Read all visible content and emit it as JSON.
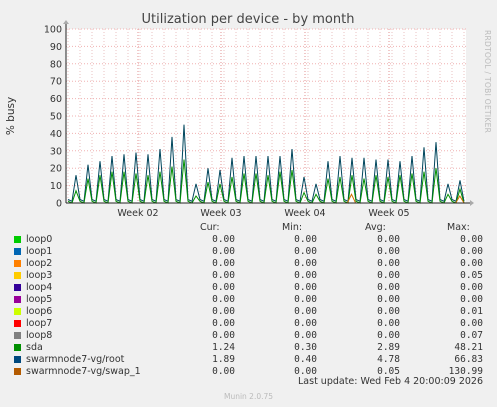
{
  "chart_data": {
    "type": "line",
    "title": "Utilization per device - by month",
    "ylabel": "% busy",
    "ylim": [
      0,
      100
    ],
    "yticks": [
      "0",
      "10",
      "20",
      "30",
      "40",
      "50",
      "60",
      "70",
      "80",
      "90",
      "100"
    ],
    "xticks": [
      "Week 02",
      "Week 03",
      "Week 04",
      "Week 05"
    ],
    "side_label": "RRDTOOL / TOBI OETIKER",
    "series": [
      {
        "name": "swarmnode7-vg/root",
        "color": "#00455c",
        "values": [
          2,
          1,
          16,
          2,
          1,
          22,
          2,
          1,
          24,
          2,
          1,
          27,
          2,
          1,
          28,
          2,
          1,
          29,
          2,
          1,
          28,
          2,
          1,
          31,
          2,
          1,
          38,
          2,
          1,
          45,
          2,
          1,
          11,
          2,
          1,
          20,
          2,
          1,
          19,
          2,
          1,
          26,
          2,
          1,
          27,
          2,
          1,
          27,
          2,
          1,
          27,
          2,
          1,
          27,
          2,
          1,
          31,
          2,
          1,
          15,
          2,
          1,
          11,
          2,
          1,
          24,
          2,
          1,
          27,
          2,
          1,
          26,
          2,
          1,
          26,
          2,
          1,
          25,
          2,
          1,
          25,
          2,
          1,
          24,
          2,
          1,
          27,
          2,
          1,
          32,
          2,
          1,
          35,
          2,
          1,
          11,
          2,
          1,
          13,
          1
        ]
      },
      {
        "name": "sda",
        "color": "#008f00",
        "values": [
          1,
          0,
          7,
          1,
          0,
          14,
          1,
          0,
          16,
          1,
          0,
          18,
          1,
          0,
          18,
          1,
          0,
          17,
          1,
          0,
          16,
          1,
          0,
          18,
          1,
          0,
          21,
          1,
          0,
          25,
          1,
          0,
          4,
          1,
          0,
          12,
          1,
          0,
          11,
          1,
          0,
          15,
          1,
          0,
          17,
          1,
          0,
          17,
          1,
          0,
          16,
          1,
          0,
          18,
          1,
          0,
          19,
          1,
          0,
          6,
          1,
          0,
          5,
          1,
          0,
          14,
          1,
          0,
          15,
          1,
          0,
          16,
          1,
          0,
          14,
          1,
          0,
          16,
          1,
          0,
          15,
          1,
          0,
          16,
          1,
          0,
          17,
          1,
          0,
          18,
          1,
          0,
          20,
          1,
          0,
          5,
          1,
          0,
          8,
          0
        ]
      },
      {
        "name": "swarmnode7-vg/swap_1",
        "color": "#d26f00",
        "values": [
          0,
          0,
          0,
          0,
          0,
          0,
          0,
          0,
          0,
          0,
          0,
          0,
          0,
          0,
          0,
          0,
          0,
          0,
          0,
          0,
          0,
          0,
          0,
          0,
          0,
          0,
          0,
          0,
          0,
          0,
          0,
          0,
          0,
          0,
          0,
          0,
          0,
          0,
          0,
          0,
          0,
          0,
          0,
          0,
          0,
          0,
          0,
          0,
          0,
          0,
          0,
          0,
          0,
          0,
          0,
          0,
          0,
          0,
          0,
          0,
          0,
          0,
          0,
          0,
          0,
          0,
          0,
          0,
          5,
          0,
          0,
          0,
          0,
          0,
          0,
          0,
          0,
          0,
          0,
          0,
          0,
          0,
          0,
          0,
          0,
          0,
          0,
          0,
          0,
          0,
          0,
          0,
          0,
          0,
          4,
          0
        ]
      }
    ],
    "legend": {
      "headers": [
        "Cur:",
        "Min:",
        "Avg:",
        "Max:"
      ],
      "rows": [
        {
          "name": "loop0",
          "color": "#00cc00",
          "cur": "0.00",
          "min": "0.00",
          "avg": "0.00",
          "max": "0.00"
        },
        {
          "name": "loop1",
          "color": "#0066b3",
          "cur": "0.00",
          "min": "0.00",
          "avg": "0.00",
          "max": "0.00"
        },
        {
          "name": "loop2",
          "color": "#ff8000",
          "cur": "0.00",
          "min": "0.00",
          "avg": "0.00",
          "max": "0.00"
        },
        {
          "name": "loop3",
          "color": "#ffcc00",
          "cur": "0.00",
          "min": "0.00",
          "avg": "0.00",
          "max": "0.05"
        },
        {
          "name": "loop4",
          "color": "#330099",
          "cur": "0.00",
          "min": "0.00",
          "avg": "0.00",
          "max": "0.00"
        },
        {
          "name": "loop5",
          "color": "#990099",
          "cur": "0.00",
          "min": "0.00",
          "avg": "0.00",
          "max": "0.00"
        },
        {
          "name": "loop6",
          "color": "#ccff00",
          "cur": "0.00",
          "min": "0.00",
          "avg": "0.00",
          "max": "0.01"
        },
        {
          "name": "loop7",
          "color": "#ff0000",
          "cur": "0.00",
          "min": "0.00",
          "avg": "0.00",
          "max": "0.00"
        },
        {
          "name": "loop8",
          "color": "#808080",
          "cur": "0.00",
          "min": "0.00",
          "avg": "0.00",
          "max": "0.07"
        },
        {
          "name": "sda",
          "color": "#008f00",
          "cur": "1.24",
          "min": "0.30",
          "avg": "2.89",
          "max": "48.21"
        },
        {
          "name": "swarmnode7-vg/root",
          "color": "#00487d",
          "cur": "1.89",
          "min": "0.40",
          "avg": "4.78",
          "max": "66.83"
        },
        {
          "name": "swarmnode7-vg/swap_1",
          "color": "#b35a00",
          "cur": "0.00",
          "min": "0.00",
          "avg": "0.05",
          "max": "130.99"
        }
      ]
    }
  },
  "footer": {
    "last_update": "Last update: Wed Feb  4 20:00:09 2026",
    "version": "Munin 2.0.75"
  }
}
